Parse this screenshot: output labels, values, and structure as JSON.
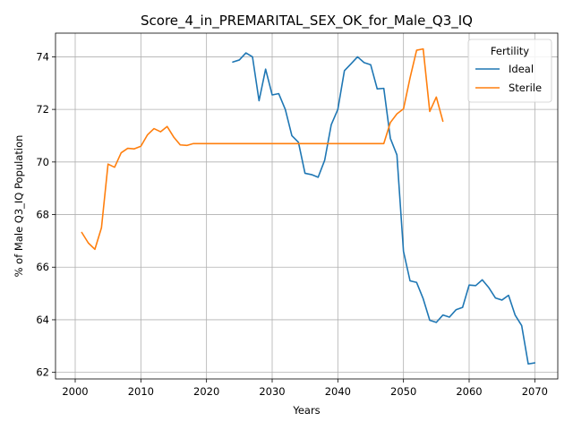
{
  "chart_data": {
    "type": "line",
    "title": "Score_4_in_PREMARITAL_SEX_OK_for_Male_Q3_IQ",
    "xlabel": "Years",
    "ylabel": "% of Male Q3_IQ Population",
    "xlim": [
      1997,
      2073.5
    ],
    "ylim": [
      61.75,
      74.9
    ],
    "xticks": [
      2000,
      2010,
      2020,
      2030,
      2040,
      2050,
      2060,
      2070
    ],
    "yticks": [
      62,
      64,
      66,
      68,
      70,
      72,
      74
    ],
    "grid": true,
    "legend": {
      "title": "Fertility",
      "placement": "top-right"
    },
    "series": [
      {
        "name": "Ideal",
        "color": "#1f77b4",
        "x": [
          2024,
          2025,
          2026,
          2027,
          2028,
          2029,
          2030,
          2031,
          2032,
          2033,
          2034,
          2035,
          2036,
          2037,
          2038,
          2039,
          2040,
          2041,
          2042,
          2043,
          2044,
          2045,
          2046,
          2047,
          2048,
          2049,
          2050,
          2051,
          2052,
          2053,
          2054,
          2055,
          2056,
          2057,
          2058,
          2059,
          2060,
          2061,
          2062,
          2063,
          2064,
          2065,
          2066,
          2067,
          2068,
          2069,
          2070
        ],
        "y": [
          73.8,
          73.88,
          74.15,
          74.0,
          72.33,
          73.53,
          72.55,
          72.6,
          72.0,
          71.0,
          70.75,
          69.57,
          69.52,
          69.42,
          70.07,
          71.42,
          72.0,
          73.47,
          73.73,
          74.0,
          73.78,
          73.7,
          72.78,
          72.8,
          70.9,
          70.27,
          66.6,
          65.48,
          65.42,
          64.8,
          63.98,
          63.9,
          64.18,
          64.1,
          64.38,
          64.47,
          65.32,
          65.3,
          65.52,
          65.22,
          64.83,
          64.75,
          64.93,
          64.18,
          63.78,
          62.32,
          62.36
        ]
      },
      {
        "name": "Sterile",
        "color": "#ff7f0e",
        "x": [
          2001,
          2002,
          2003,
          2004,
          2005,
          2006,
          2007,
          2008,
          2009,
          2010,
          2011,
          2012,
          2013,
          2014,
          2015,
          2016,
          2017,
          2018,
          2019,
          2020,
          2021,
          2022,
          2023,
          2024,
          2025,
          2026,
          2027,
          2028,
          2029,
          2030,
          2031,
          2032,
          2033,
          2034,
          2035,
          2036,
          2037,
          2038,
          2039,
          2040,
          2041,
          2042,
          2043,
          2044,
          2045,
          2046,
          2047,
          2048,
          2049,
          2050,
          2051,
          2052,
          2053,
          2054,
          2055,
          2056
        ],
        "y": [
          67.32,
          66.92,
          66.68,
          67.5,
          69.92,
          69.8,
          70.35,
          70.52,
          70.5,
          70.6,
          71.03,
          71.27,
          71.15,
          71.35,
          70.95,
          70.65,
          70.63,
          70.7,
          70.7,
          70.7,
          70.7,
          70.7,
          70.7,
          70.7,
          70.7,
          70.7,
          70.7,
          70.7,
          70.7,
          70.7,
          70.7,
          70.7,
          70.7,
          70.7,
          70.7,
          70.7,
          70.7,
          70.7,
          70.7,
          70.7,
          70.7,
          70.7,
          70.7,
          70.7,
          70.7,
          70.7,
          70.7,
          71.5,
          71.83,
          72.02,
          73.2,
          74.25,
          74.3,
          71.92,
          72.47,
          71.55
        ]
      }
    ]
  }
}
